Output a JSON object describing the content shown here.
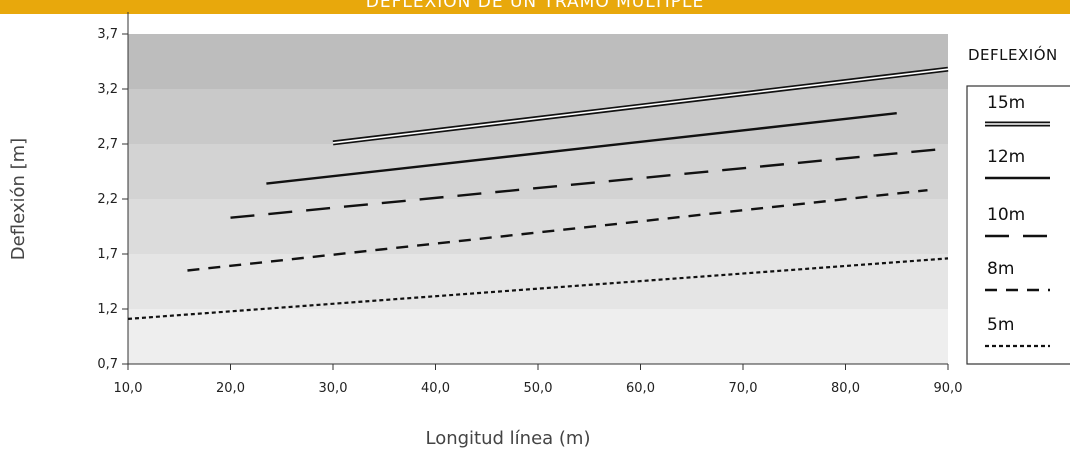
{
  "title": "DEFLEXIÓN DE UN TRAMO MÚLTIPLE",
  "colors": {
    "title_bar": "#e8a80c",
    "bands": [
      "#eeeeee",
      "#e5e5e5",
      "#dcdcdc",
      "#d3d3d3",
      "#c9c9c9",
      "#bdbdbd"
    ],
    "line": "#111111"
  },
  "chart_data": {
    "type": "line",
    "title": "DEFLEXIÓN DE UN TRAMO MÚLTIPLE",
    "xlabel": "Longitud línea (m)",
    "ylabel": "Deflexión [m]",
    "xlim": [
      10,
      90
    ],
    "ylim": [
      0.7,
      3.7
    ],
    "xticks": [
      "10,0",
      "20,0",
      "30,0",
      "40,0",
      "50,0",
      "60,0",
      "70,0",
      "80,0",
      "90,0"
    ],
    "yticks": [
      "0,7",
      "1,2",
      "1,7",
      "2,2",
      "2,7",
      "3,2",
      "3,7"
    ],
    "grid": false,
    "legend_title": "DEFLEXIÓN",
    "legend_position": "right",
    "series": [
      {
        "name": "15m",
        "style": "double",
        "x": [
          30,
          90
        ],
        "y": [
          2.71,
          3.38
        ]
      },
      {
        "name": "12m",
        "style": "solid",
        "x": [
          23.5,
          85
        ],
        "y": [
          2.34,
          2.98
        ]
      },
      {
        "name": "10m",
        "style": "long-dash",
        "x": [
          20,
          90
        ],
        "y": [
          2.03,
          2.66
        ]
      },
      {
        "name": "8m",
        "style": "dash",
        "x": [
          15.8,
          88
        ],
        "y": [
          1.55,
          2.28
        ]
      },
      {
        "name": "5m",
        "style": "dot",
        "x": [
          10,
          90
        ],
        "y": [
          1.11,
          1.66
        ]
      }
    ]
  }
}
